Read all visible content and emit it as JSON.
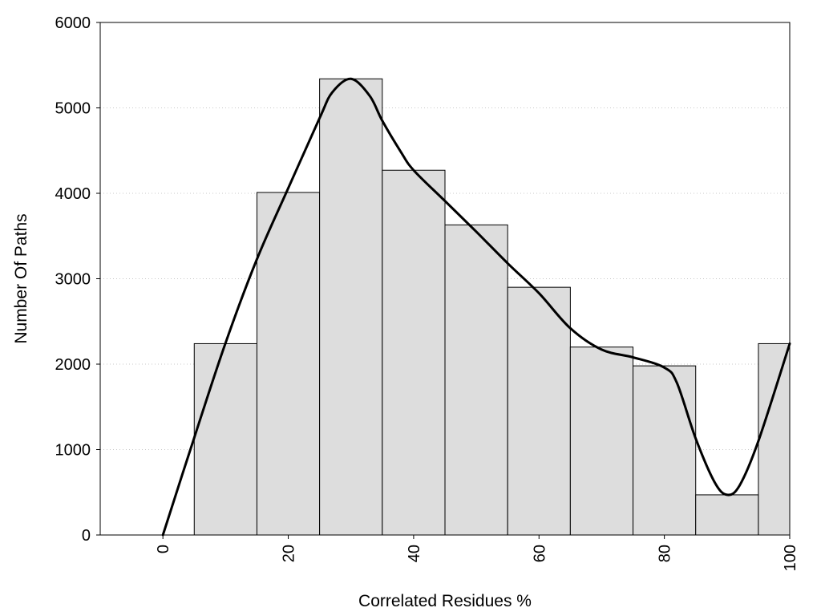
{
  "chart_data": {
    "type": "bar",
    "title": "",
    "xlabel": "Correlated Residues %",
    "ylabel": "Number Of Paths",
    "xlim": [
      -10,
      100
    ],
    "ylim": [
      0,
      6000
    ],
    "grid": {
      "y": true,
      "x": false,
      "style": "dotted"
    },
    "legend": "none",
    "bar_color": "#dddddd",
    "bar_edge_color": "#000000",
    "line_color": "#000000",
    "x_ticks": [
      0,
      20,
      40,
      60,
      80,
      100
    ],
    "x_tick_labels": [
      "0",
      "20",
      "40",
      "60",
      "80",
      "100"
    ],
    "y_ticks": [
      0,
      1000,
      2000,
      3000,
      4000,
      5000,
      6000
    ],
    "y_tick_labels": [
      "0",
      "1000",
      "2000",
      "3000",
      "4000",
      "5000",
      "6000"
    ],
    "bars": [
      {
        "x_start": 5,
        "x_end": 15,
        "value": 2240
      },
      {
        "x_start": 15,
        "x_end": 25,
        "value": 4010
      },
      {
        "x_start": 25,
        "x_end": 35,
        "value": 5340
      },
      {
        "x_start": 35,
        "x_end": 45,
        "value": 4270
      },
      {
        "x_start": 45,
        "x_end": 55,
        "value": 3630
      },
      {
        "x_start": 55,
        "x_end": 65,
        "value": 2900
      },
      {
        "x_start": 65,
        "x_end": 75,
        "value": 2200
      },
      {
        "x_start": 75,
        "x_end": 85,
        "value": 1980
      },
      {
        "x_start": 85,
        "x_end": 95,
        "value": 470
      },
      {
        "x_start": 95,
        "x_end": 100,
        "value": 2240
      }
    ],
    "curve": {
      "x": [
        0,
        5,
        10,
        15,
        20,
        25,
        27,
        30,
        33,
        35,
        38,
        40,
        45,
        50,
        55,
        60,
        65,
        70,
        75,
        80,
        82,
        85,
        88,
        90,
        92,
        95,
        100
      ],
      "y": [
        0,
        1140,
        2250,
        3230,
        4060,
        4880,
        5180,
        5340,
        5140,
        4850,
        4480,
        4270,
        3910,
        3550,
        3180,
        2830,
        2420,
        2170,
        2080,
        1960,
        1780,
        1130,
        620,
        470,
        580,
        1100,
        2240
      ]
    }
  }
}
